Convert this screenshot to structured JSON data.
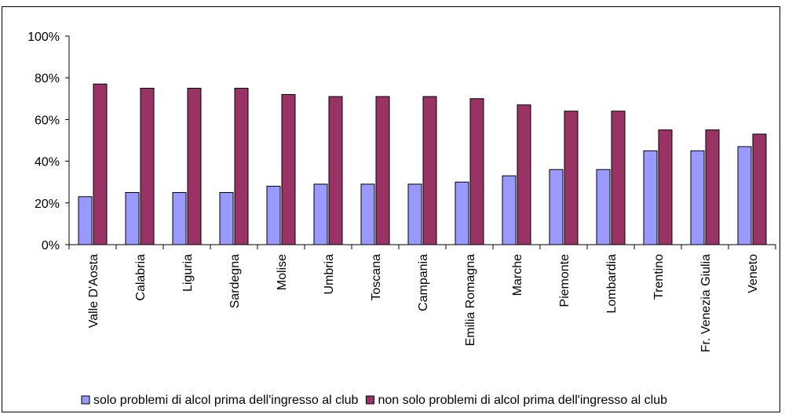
{
  "chart_data": {
    "type": "bar",
    "categories": [
      "Valle D'Aosta",
      "Calabria",
      "Liguria",
      "Sardegna",
      "Molise",
      "Umbria",
      "Toscana",
      "Campania",
      "Emilia Romagna",
      "Marche",
      "Piemonte",
      "Lombardia",
      "Trentino",
      "Fr. Venezia Giulia",
      "Veneto"
    ],
    "series": [
      {
        "name": "solo problemi di alcol prima dell'ingresso al club",
        "color": "#9999ff",
        "values": [
          0.23,
          0.25,
          0.25,
          0.25,
          0.28,
          0.29,
          0.29,
          0.29,
          0.3,
          0.33,
          0.36,
          0.36,
          0.45,
          0.45,
          0.47
        ]
      },
      {
        "name": "non solo problemi di alcol prima dell'ingresso al club",
        "color": "#993366",
        "values": [
          0.77,
          0.75,
          0.75,
          0.75,
          0.72,
          0.71,
          0.71,
          0.71,
          0.7,
          0.67,
          0.64,
          0.64,
          0.55,
          0.55,
          0.53
        ]
      }
    ],
    "ylim": [
      0,
      1
    ],
    "yticks": [
      "0%",
      "20%",
      "40%",
      "60%",
      "80%",
      "100%"
    ],
    "grid": false,
    "legend_position": "bottom",
    "plot_background": "#ffffff"
  }
}
